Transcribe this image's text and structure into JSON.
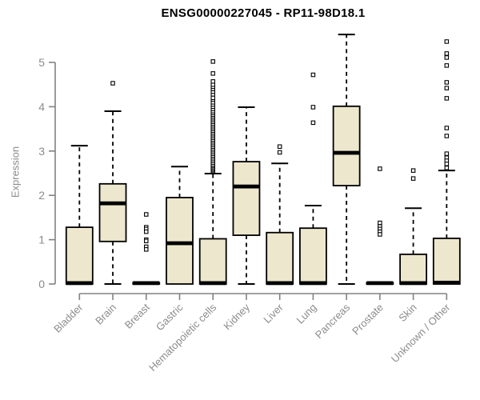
{
  "chart_data": {
    "type": "boxplot",
    "title": "ENSG00000227045 - RP11-98D18.1",
    "ylabel": "Expression",
    "xlabel": "",
    "ylim": [
      0,
      5.7
    ],
    "yticks": [
      0,
      1,
      2,
      3,
      4,
      5
    ],
    "grid": false,
    "legend": "none",
    "box_fill": "#EDE7CD",
    "box_stroke": "#000000",
    "axis_color": "#828282",
    "label_color": "#8c8c8c",
    "categories": [
      "Bladder",
      "Brain",
      "Breast",
      "Gastric",
      "Hematopoietic cells",
      "Kidney",
      "Liver",
      "Lung",
      "Pancreas",
      "Prostate",
      "Skin",
      "Unknown / Other"
    ],
    "series": [
      {
        "category": "Bladder",
        "low": 0,
        "q1": 0,
        "median": 0.02,
        "q3": 1.28,
        "high": 3.12,
        "outliers": []
      },
      {
        "category": "Brain",
        "low": 0,
        "q1": 0.96,
        "median": 1.82,
        "q3": 2.26,
        "high": 3.9,
        "outliers": [
          4.53
        ]
      },
      {
        "category": "Breast",
        "low": 0,
        "q1": 0,
        "median": 0.02,
        "q3": 0.03,
        "high": 0.03,
        "outliers": [
          1.57,
          1.28,
          1.24,
          1.18,
          1.0,
          0.97,
          0.84,
          0.78
        ]
      },
      {
        "category": "Gastric",
        "low": 0,
        "q1": 0,
        "median": 0.92,
        "q3": 1.95,
        "high": 2.65,
        "outliers": []
      },
      {
        "category": "Hematopoietic cells",
        "low": 0,
        "q1": 0,
        "median": 0.02,
        "q3": 1.02,
        "high": 2.49,
        "outliers": [
          2.55,
          2.58,
          2.61,
          2.64,
          2.67,
          2.7,
          2.74,
          2.78,
          2.82,
          2.86,
          2.9,
          2.94,
          2.98,
          3.02,
          3.06,
          3.1,
          3.14,
          3.18,
          3.22,
          3.26,
          3.3,
          3.34,
          3.38,
          3.42,
          3.46,
          3.5,
          3.54,
          3.58,
          3.62,
          3.66,
          3.7,
          3.74,
          3.78,
          3.82,
          3.86,
          3.9,
          3.95,
          4.0,
          4.05,
          4.1,
          4.16,
          4.2,
          4.28,
          4.34,
          4.4,
          4.45,
          4.5,
          4.57,
          4.75,
          5.02
        ]
      },
      {
        "category": "Kidney",
        "low": 0,
        "q1": 1.1,
        "median": 2.2,
        "q3": 2.76,
        "high": 3.99,
        "outliers": []
      },
      {
        "category": "Liver",
        "low": 0,
        "q1": 0,
        "median": 0.02,
        "q3": 1.16,
        "high": 2.72,
        "outliers": [
          3.1,
          2.97
        ]
      },
      {
        "category": "Lung",
        "low": 0,
        "q1": 0,
        "median": 0.02,
        "q3": 1.26,
        "high": 1.77,
        "outliers": [
          4.72,
          3.99,
          3.64
        ]
      },
      {
        "category": "Pancreas",
        "low": 0,
        "q1": 2.22,
        "median": 2.96,
        "q3": 4.01,
        "high": 5.63,
        "outliers": []
      },
      {
        "category": "Prostate",
        "low": 0,
        "q1": 0,
        "median": 0.02,
        "q3": 0.03,
        "high": 0.03,
        "outliers": [
          2.6,
          1.38,
          1.3,
          1.24,
          1.18,
          1.12
        ]
      },
      {
        "category": "Skin",
        "low": 0,
        "q1": 0,
        "median": 0.02,
        "q3": 0.67,
        "high": 1.71,
        "outliers": [
          2.56,
          2.38
        ]
      },
      {
        "category": "Unknown / Other",
        "low": 0,
        "q1": 0,
        "median": 0.03,
        "q3": 1.03,
        "high": 2.56,
        "outliers": [
          5.47,
          5.2,
          5.11,
          4.93,
          4.55,
          4.42,
          4.19,
          3.52,
          3.34,
          2.94,
          2.85,
          2.78,
          2.71,
          2.62
        ]
      }
    ]
  }
}
